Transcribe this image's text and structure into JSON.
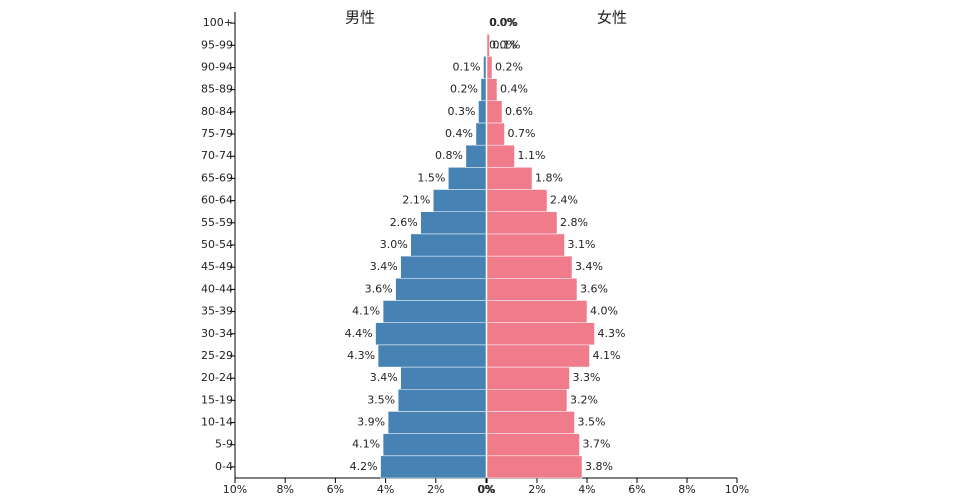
{
  "chart_data": {
    "type": "pyramid",
    "categories": [
      "0-4",
      "5-9",
      "10-14",
      "15-19",
      "20-24",
      "25-29",
      "30-34",
      "35-39",
      "40-44",
      "45-49",
      "50-54",
      "55-59",
      "60-64",
      "65-69",
      "70-74",
      "75-79",
      "80-84",
      "85-89",
      "90-94",
      "95-99",
      "100+"
    ],
    "series": [
      {
        "name": "男性",
        "color": "#4682b4",
        "axis": "x",
        "values": [
          4.2,
          4.1,
          3.9,
          3.5,
          3.4,
          4.3,
          4.4,
          4.1,
          3.6,
          3.4,
          3.0,
          2.6,
          2.1,
          1.5,
          0.8,
          0.4,
          0.3,
          0.2,
          0.1,
          0.0,
          0.0
        ],
        "value_labels": [
          "4.2%",
          "4.1%",
          "3.9%",
          "3.5%",
          "3.4%",
          "4.3%",
          "4.4%",
          "4.1%",
          "3.6%",
          "3.4%",
          "3.0%",
          "2.6%",
          "2.1%",
          "1.5%",
          "0.8%",
          "0.4%",
          "0.3%",
          "0.2%",
          "0.1%",
          "0.0%",
          "0.0%"
        ]
      },
      {
        "name": "女性",
        "color": "#f07b8b",
        "axis": "x2",
        "values": [
          3.8,
          3.7,
          3.5,
          3.2,
          3.3,
          4.1,
          4.3,
          4.0,
          3.6,
          3.4,
          3.1,
          2.8,
          2.4,
          1.8,
          1.1,
          0.7,
          0.6,
          0.4,
          0.2,
          0.1,
          0.0
        ],
        "value_labels": [
          "3.8%",
          "3.7%",
          "3.5%",
          "3.2%",
          "3.3%",
          "4.1%",
          "4.3%",
          "4.0%",
          "3.6%",
          "3.4%",
          "3.1%",
          "2.8%",
          "2.4%",
          "1.8%",
          "1.1%",
          "0.7%",
          "0.6%",
          "0.4%",
          "0.2%",
          "0.1%",
          "0.0%"
        ]
      }
    ],
    "xlim": [
      10,
      0
    ],
    "xticks": [
      {
        "value": 10,
        "label": "10%"
      },
      {
        "value": 8,
        "label": "8%"
      },
      {
        "value": 6,
        "label": "6%"
      },
      {
        "value": 4,
        "label": "4%"
      },
      {
        "value": 2,
        "label": "2%"
      },
      {
        "value": 0,
        "label": "0%"
      }
    ],
    "x2lim": [
      0,
      10
    ],
    "x2ticks": [
      {
        "value": 0,
        "label": "0%"
      },
      {
        "value": 2,
        "label": "2%"
      },
      {
        "value": 4,
        "label": "4%"
      },
      {
        "value": 6,
        "label": "6%"
      },
      {
        "value": 8,
        "label": "8%"
      },
      {
        "value": 10,
        "label": "10%"
      }
    ]
  }
}
